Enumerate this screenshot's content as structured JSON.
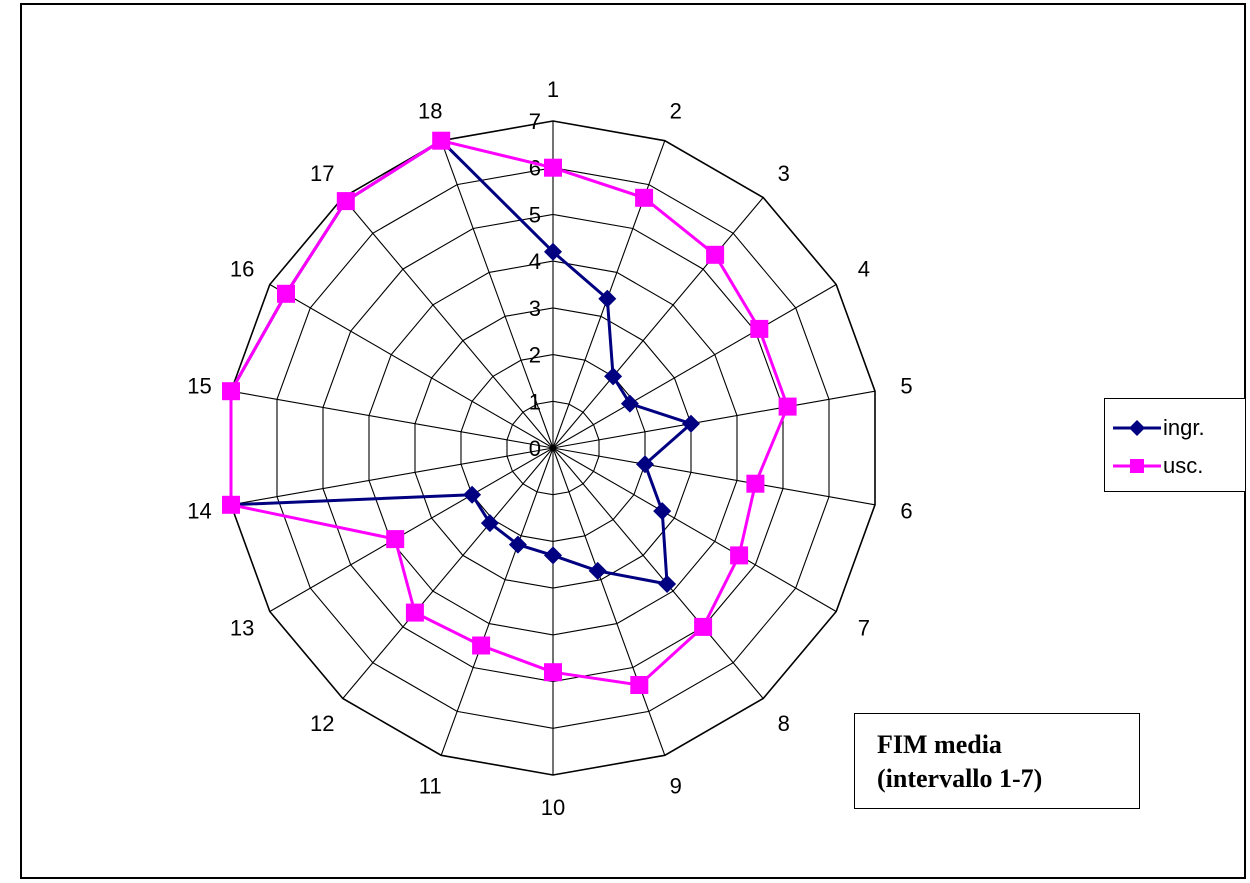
{
  "chart_data": {
    "type": "radar",
    "title": "",
    "categories": [
      "1",
      "2",
      "3",
      "4",
      "5",
      "6",
      "7",
      "8",
      "9",
      "10",
      "11",
      "12",
      "13",
      "14",
      "15",
      "16",
      "17",
      "18"
    ],
    "radial_ticks": [
      "0",
      "1",
      "2",
      "3",
      "4",
      "5",
      "6",
      "7"
    ],
    "rlim": [
      0,
      7
    ],
    "grid": true,
    "legend_position": "right",
    "series": [
      {
        "name": "ingr.",
        "color": "#000080",
        "marker": "diamond",
        "values": [
          4.2,
          3.4,
          2.0,
          1.9,
          3.0,
          2.0,
          2.7,
          3.8,
          2.8,
          2.3,
          2.2,
          2.1,
          2.0,
          7.0,
          7.0,
          6.6,
          6.9,
          7.0
        ]
      },
      {
        "name": "usc.",
        "color": "#FF00FF",
        "marker": "square",
        "values": [
          6.0,
          5.7,
          5.4,
          5.1,
          5.1,
          4.4,
          4.6,
          5.0,
          5.4,
          4.8,
          4.5,
          4.6,
          3.9,
          7.0,
          7.0,
          6.6,
          6.9,
          7.0
        ]
      }
    ],
    "annotation": {
      "line1": "FIM media",
      "line2": "(intervallo 1-7)"
    }
  }
}
